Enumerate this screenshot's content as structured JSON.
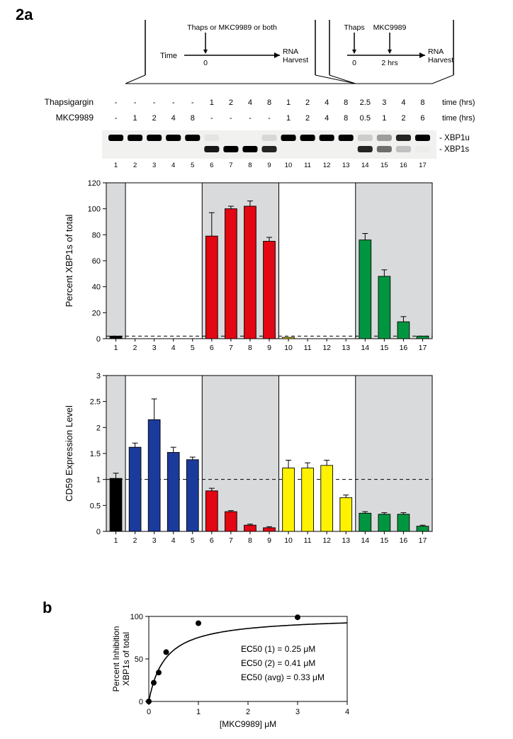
{
  "figure_labels": {
    "a": "2a",
    "b": "b"
  },
  "scheme_left": {
    "time_label": "Time",
    "top_label": "Thaps or MKC9989 or both",
    "zero": "0",
    "end": "RNA\nHarvest"
  },
  "scheme_right": {
    "thaps": "Thaps",
    "mkc": "MKC9989",
    "zero": "0",
    "two": "2 hrs",
    "end": "RNA\nHarvest"
  },
  "header_rows": {
    "thaps_label": "Thapsigargin",
    "mkc_label": "MKC9989",
    "time_label": "time (hrs)",
    "thaps_values": [
      "-",
      "-",
      "-",
      "-",
      "-",
      "1",
      "2",
      "4",
      "8",
      "1",
      "2",
      "4",
      "8",
      "2.5",
      "3",
      "4",
      "8"
    ],
    "mkc_values": [
      "-",
      "1",
      "2",
      "4",
      "8",
      "-",
      "-",
      "-",
      "-",
      "1",
      "2",
      "4",
      "8",
      "0.5",
      "1",
      "2",
      "6"
    ]
  },
  "gel": {
    "band_labels": {
      "u": "- XBP1u",
      "s": "- XBP1s"
    },
    "lane_numbers": [
      "1",
      "2",
      "3",
      "4",
      "5",
      "6",
      "7",
      "8",
      "9",
      "10",
      "11",
      "12",
      "13",
      "14",
      "15",
      "16",
      "17"
    ],
    "top_band": [
      1,
      1,
      1,
      1,
      1,
      0.05,
      0,
      0,
      0.1,
      1,
      1,
      1,
      1,
      0.15,
      0.35,
      0.85,
      1
    ],
    "bottom_band": [
      0,
      0,
      0,
      0,
      0,
      0.9,
      1,
      1,
      0.85,
      0,
      0,
      0,
      0,
      0.85,
      0.55,
      0.2,
      0.02
    ]
  },
  "xbp1s_chart": {
    "ylabel": "Percent XBP1s of total",
    "ylim": [
      0,
      120
    ],
    "yticks": [
      0,
      20,
      40,
      60,
      80,
      100,
      120
    ],
    "baseline": 2,
    "groups": [
      {
        "lanes": [
          1
        ],
        "shade": true
      },
      {
        "lanes": [
          2,
          3,
          4,
          5
        ],
        "shade": false
      },
      {
        "lanes": [
          6,
          7,
          8,
          9
        ],
        "shade": true
      },
      {
        "lanes": [
          10,
          11,
          12,
          13
        ],
        "shade": false
      },
      {
        "lanes": [
          14,
          15,
          16,
          17
        ],
        "shade": true
      }
    ],
    "bars": [
      {
        "lane": 1,
        "value": 2,
        "err": 0,
        "color": "#000000"
      },
      {
        "lane": 2,
        "value": 0,
        "err": 0,
        "color": "#1b3b9c"
      },
      {
        "lane": 3,
        "value": 0,
        "err": 0,
        "color": "#1b3b9c"
      },
      {
        "lane": 4,
        "value": 0,
        "err": 0,
        "color": "#1b3b9c"
      },
      {
        "lane": 5,
        "value": 0,
        "err": 0,
        "color": "#1b3b9c"
      },
      {
        "lane": 6,
        "value": 79,
        "err": 18,
        "color": "#e30613"
      },
      {
        "lane": 7,
        "value": 100,
        "err": 2,
        "color": "#e30613"
      },
      {
        "lane": 8,
        "value": 102,
        "err": 4,
        "color": "#e30613"
      },
      {
        "lane": 9,
        "value": 75,
        "err": 3,
        "color": "#e30613"
      },
      {
        "lane": 10,
        "value": 1,
        "err": 0,
        "color": "#fff200"
      },
      {
        "lane": 11,
        "value": 0,
        "err": 0,
        "color": "#fff200"
      },
      {
        "lane": 12,
        "value": 0,
        "err": 0,
        "color": "#fff200"
      },
      {
        "lane": 13,
        "value": 0,
        "err": 0,
        "color": "#fff200"
      },
      {
        "lane": 14,
        "value": 76,
        "err": 5,
        "color": "#009640"
      },
      {
        "lane": 15,
        "value": 48,
        "err": 5,
        "color": "#009640"
      },
      {
        "lane": 16,
        "value": 13,
        "err": 4,
        "color": "#009640"
      },
      {
        "lane": 17,
        "value": 2,
        "err": 0,
        "color": "#009640"
      }
    ]
  },
  "cd59_chart": {
    "ylabel": "CD59 Expression Level",
    "ylim": [
      0,
      3
    ],
    "yticks": [
      0,
      0.5,
      1,
      1.5,
      2,
      2.5,
      3
    ],
    "baseline": 1.0,
    "groups": [
      {
        "lanes": [
          1
        ],
        "shade": true
      },
      {
        "lanes": [
          2,
          3,
          4,
          5
        ],
        "shade": false
      },
      {
        "lanes": [
          6,
          7,
          8,
          9
        ],
        "shade": true
      },
      {
        "lanes": [
          10,
          11,
          12,
          13
        ],
        "shade": false
      },
      {
        "lanes": [
          14,
          15,
          16,
          17
        ],
        "shade": true
      }
    ],
    "bars": [
      {
        "lane": 1,
        "value": 1.02,
        "err": 0.1,
        "color": "#000000"
      },
      {
        "lane": 2,
        "value": 1.62,
        "err": 0.08,
        "color": "#1b3b9c"
      },
      {
        "lane": 3,
        "value": 2.15,
        "err": 0.4,
        "color": "#1b3b9c"
      },
      {
        "lane": 4,
        "value": 1.52,
        "err": 0.1,
        "color": "#1b3b9c"
      },
      {
        "lane": 5,
        "value": 1.38,
        "err": 0.05,
        "color": "#1b3b9c"
      },
      {
        "lane": 6,
        "value": 0.78,
        "err": 0.05,
        "color": "#e30613"
      },
      {
        "lane": 7,
        "value": 0.38,
        "err": 0.02,
        "color": "#e30613"
      },
      {
        "lane": 8,
        "value": 0.12,
        "err": 0.02,
        "color": "#e30613"
      },
      {
        "lane": 9,
        "value": 0.07,
        "err": 0.02,
        "color": "#e30613"
      },
      {
        "lane": 10,
        "value": 1.22,
        "err": 0.15,
        "color": "#fff200"
      },
      {
        "lane": 11,
        "value": 1.22,
        "err": 0.1,
        "color": "#fff200"
      },
      {
        "lane": 12,
        "value": 1.27,
        "err": 0.1,
        "color": "#fff200"
      },
      {
        "lane": 13,
        "value": 0.65,
        "err": 0.05,
        "color": "#fff200"
      },
      {
        "lane": 14,
        "value": 0.35,
        "err": 0.03,
        "color": "#009640"
      },
      {
        "lane": 15,
        "value": 0.33,
        "err": 0.03,
        "color": "#009640"
      },
      {
        "lane": 16,
        "value": 0.33,
        "err": 0.03,
        "color": "#009640"
      },
      {
        "lane": 17,
        "value": 0.1,
        "err": 0.02,
        "color": "#009640"
      }
    ]
  },
  "panel_b": {
    "ylabel": "Percent Inhibition\nXBP1s of total",
    "xlabel": "[MKC9989] μM",
    "ylim": [
      0,
      100
    ],
    "yticks": [
      0,
      50,
      100
    ],
    "xlim": [
      0,
      4
    ],
    "xticks": [
      0,
      1,
      2,
      3,
      4
    ],
    "points": [
      {
        "x": 0.0,
        "y": 0
      },
      {
        "x": 0.1,
        "y": 22
      },
      {
        "x": 0.2,
        "y": 34
      },
      {
        "x": 0.35,
        "y": 58
      },
      {
        "x": 1.0,
        "y": 92
      },
      {
        "x": 3.0,
        "y": 99
      }
    ],
    "ec50_lines": [
      "EC₅₀ (1) = 0.25 μM",
      "EC₅₀ (2) = 0.41 μM",
      "EC₅₀ (avg) = 0.33 μM"
    ],
    "ec50_fit_k": 0.33
  },
  "style": {
    "shade_color": "#d9dadb",
    "axis_color": "#000000",
    "grid_none": true,
    "font_size_axis": 12,
    "font_size_small": 10
  }
}
